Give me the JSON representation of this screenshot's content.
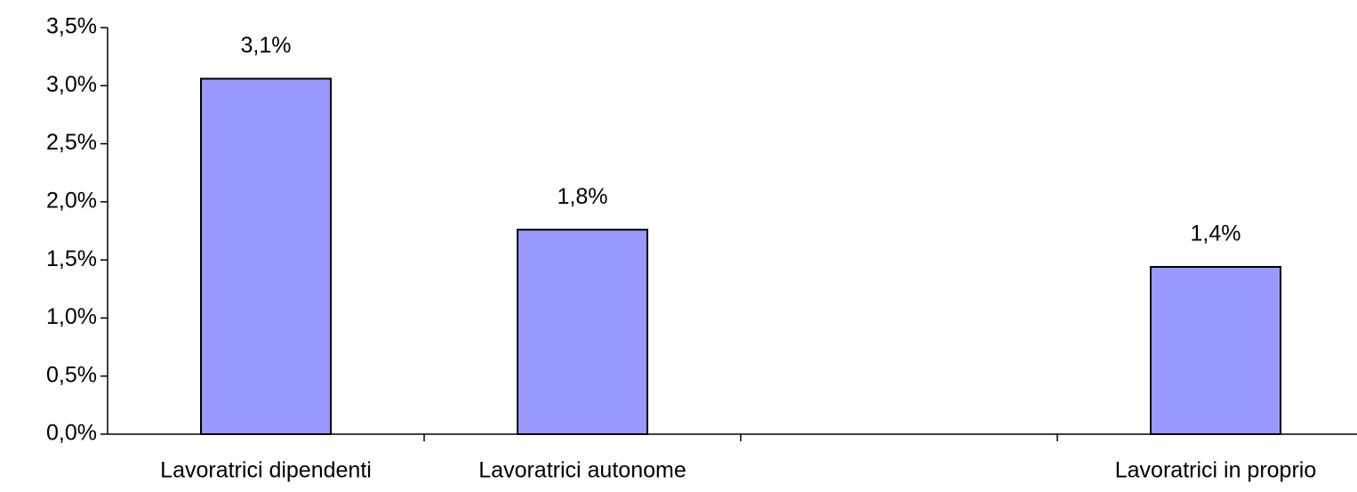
{
  "chart_data": {
    "type": "bar",
    "categories": [
      "Lavoratrici dipendenti",
      "Lavoratrici autonome",
      null,
      "Lavoratrici in proprio"
    ],
    "values": [
      3.06,
      1.76,
      null,
      1.44
    ],
    "value_labels": [
      "3,1%",
      "1,8%",
      null,
      "1,4%"
    ],
    "color": "#9999ff",
    "ylim": [
      0,
      3.5
    ],
    "yticks": [
      {
        "value": 0,
        "label": "0,0%"
      },
      {
        "value": 0.5,
        "label": "0,5%"
      },
      {
        "value": 1,
        "label": "1,0%"
      },
      {
        "value": 1.5,
        "label": "1,5%"
      },
      {
        "value": 2,
        "label": "2,0%"
      },
      {
        "value": 2.5,
        "label": "2,5%"
      },
      {
        "value": 3,
        "label": "3,0%"
      },
      {
        "value": 3.5,
        "label": "3,5%"
      }
    ],
    "grid": false
  }
}
